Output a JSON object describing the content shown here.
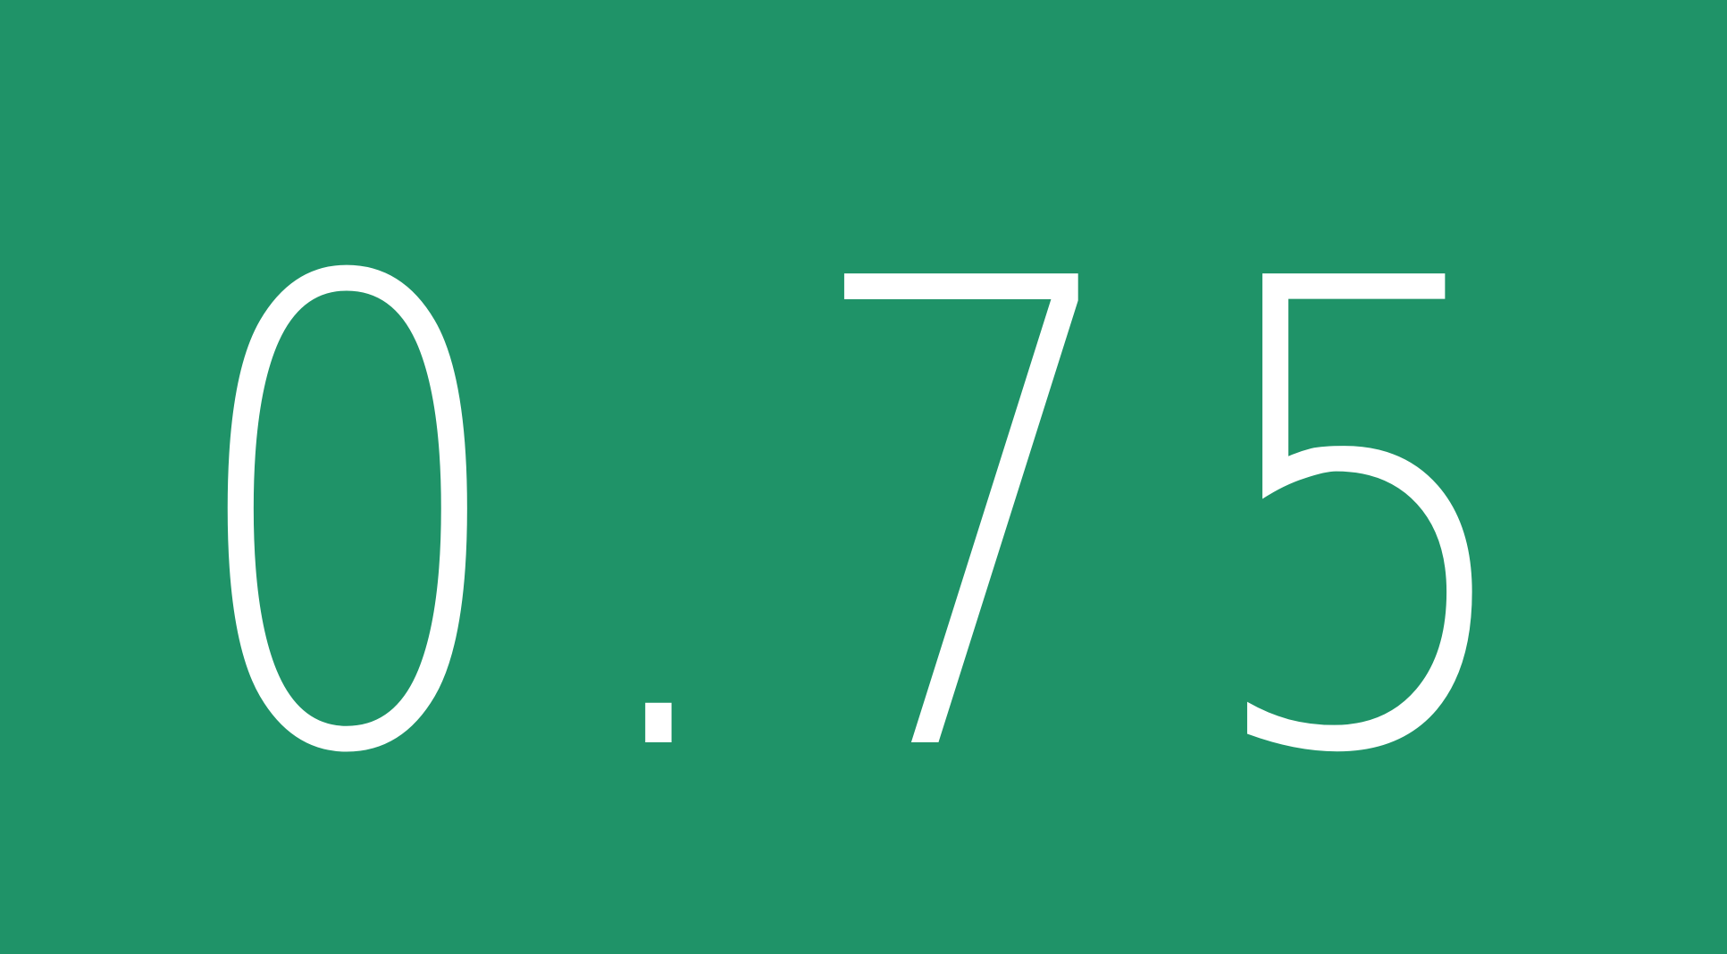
{
  "tile": {
    "value": "0.75",
    "background_color": "#1F9368",
    "text_color": "#FFFFFF"
  }
}
